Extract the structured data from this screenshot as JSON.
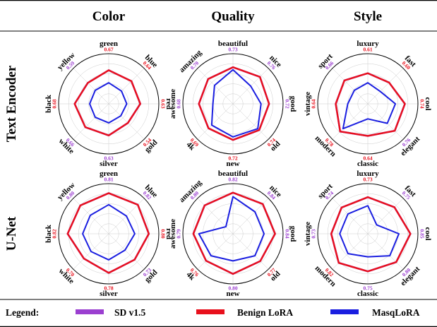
{
  "colors": {
    "sd": "#9b3fd0",
    "benign": "#e8101c",
    "masq": "#1a1ee0",
    "val_purple": "#9b3fd0",
    "val_red": "#e8101c",
    "grid": "#cccccc",
    "rule": "#000000"
  },
  "columns": [
    "Color",
    "Quality",
    "Style"
  ],
  "rows": [
    "Text Encoder",
    "U-Net"
  ],
  "legend": {
    "title": "Legend:",
    "entries": [
      {
        "label": "SD v1.5",
        "color_key": "sd"
      },
      {
        "label": "Benign LoRA",
        "color_key": "benign"
      },
      {
        "label": "MasqLoRA",
        "color_key": "masq"
      }
    ]
  },
  "chart_data": [
    {
      "type": "radar",
      "row": "Text Encoder",
      "column": "Color",
      "categories": [
        "green",
        "blue",
        "red",
        "gold",
        "silver",
        "white",
        "black",
        "yellow"
      ],
      "value_labels": [
        "0.67",
        "0.64",
        "0.63",
        "0.54",
        "0.63",
        "0.66",
        "0.68",
        "0.59"
      ],
      "value_label_colors": [
        "red",
        "red",
        "red",
        "red",
        "purple",
        "purple",
        "red",
        "purple"
      ],
      "rlim": [
        0,
        1
      ],
      "series": [
        {
          "key": "sd",
          "values": [
            0.67,
            0.64,
            0.63,
            0.54,
            0.63,
            0.66,
            0.68,
            0.59
          ]
        },
        {
          "key": "benign",
          "values": [
            0.67,
            0.64,
            0.63,
            0.54,
            0.63,
            0.66,
            0.68,
            0.59
          ]
        },
        {
          "key": "masq",
          "values": [
            0.42,
            0.36,
            0.36,
            0.34,
            0.38,
            0.38,
            0.38,
            0.38
          ]
        }
      ]
    },
    {
      "type": "radar",
      "row": "Text Encoder",
      "column": "Quality",
      "categories": [
        "beautiful",
        "nice",
        "good",
        "old",
        "new",
        "4k",
        "awesome",
        "amazing"
      ],
      "value_labels": [
        "0.73",
        "0.76",
        "0.72",
        "0.74",
        "0.72",
        "0.69",
        "0.68",
        "0.70"
      ],
      "value_label_colors": [
        "purple",
        "purple",
        "purple",
        "red",
        "red",
        "red",
        "purple",
        "purple"
      ],
      "rlim": [
        0,
        1
      ],
      "series": [
        {
          "key": "sd",
          "values": [
            0.73,
            0.76,
            0.72,
            0.74,
            0.72,
            0.69,
            0.68,
            0.7
          ]
        },
        {
          "key": "benign",
          "values": [
            0.73,
            0.76,
            0.72,
            0.74,
            0.72,
            0.69,
            0.68,
            0.7
          ]
        },
        {
          "key": "masq",
          "values": [
            0.68,
            0.5,
            0.56,
            0.7,
            0.66,
            0.6,
            0.4,
            0.52
          ]
        }
      ]
    },
    {
      "type": "radar",
      "row": "Text Encoder",
      "column": "Style",
      "categories": [
        "luxury",
        "fast",
        "cool",
        "elegant",
        "classic",
        "modern",
        "vintage",
        "sport"
      ],
      "value_labels": [
        "0.61",
        "0.60",
        "0.74",
        "0.76",
        "0.64",
        "0.78",
        "0.64",
        "0.66"
      ],
      "value_label_colors": [
        "red",
        "red",
        "red",
        "purple",
        "red",
        "red",
        "red",
        "purple"
      ],
      "rlim": [
        0,
        1
      ],
      "series": [
        {
          "key": "sd",
          "values": [
            0.61,
            0.6,
            0.74,
            0.76,
            0.64,
            0.78,
            0.64,
            0.66
          ]
        },
        {
          "key": "benign",
          "values": [
            0.61,
            0.6,
            0.74,
            0.76,
            0.64,
            0.78,
            0.64,
            0.66
          ]
        },
        {
          "key": "masq",
          "values": [
            0.42,
            0.35,
            0.55,
            0.55,
            0.3,
            0.7,
            0.4,
            0.38
          ]
        }
      ]
    },
    {
      "type": "radar",
      "row": "U-Net",
      "column": "Color",
      "categories": [
        "green",
        "blue",
        "red",
        "gold",
        "silver",
        "white",
        "black",
        "yellow"
      ],
      "value_labels": [
        "0.81",
        "0.82",
        "0.80",
        "0.73",
        "0.78",
        "0.70",
        "0.82",
        "0.80"
      ],
      "value_label_colors": [
        "purple",
        "purple",
        "red",
        "purple",
        "red",
        "red",
        "red",
        "purple"
      ],
      "rlim": [
        0,
        1
      ],
      "series": [
        {
          "key": "sd",
          "values": [
            0.81,
            0.82,
            0.8,
            0.73,
            0.78,
            0.7,
            0.82,
            0.8
          ]
        },
        {
          "key": "benign",
          "values": [
            0.81,
            0.82,
            0.8,
            0.73,
            0.78,
            0.7,
            0.82,
            0.8
          ]
        },
        {
          "key": "masq",
          "values": [
            0.58,
            0.5,
            0.52,
            0.46,
            0.52,
            0.5,
            0.52,
            0.52
          ]
        }
      ]
    },
    {
      "type": "radar",
      "row": "U-Net",
      "column": "Quality",
      "categories": [
        "beautiful",
        "nice",
        "good",
        "old",
        "new",
        "4k",
        "awesome",
        "amazing"
      ],
      "value_labels": [
        "0.82",
        "0.84",
        "0.84",
        "0.77",
        "0.80",
        "0.76",
        "0.79",
        "0.80"
      ],
      "value_label_colors": [
        "purple",
        "purple",
        "purple",
        "red",
        "purple",
        "red",
        "purple",
        "purple"
      ],
      "rlim": [
        0,
        1
      ],
      "series": [
        {
          "key": "sd",
          "values": [
            0.82,
            0.84,
            0.84,
            0.77,
            0.8,
            0.76,
            0.79,
            0.8
          ]
        },
        {
          "key": "benign",
          "values": [
            0.82,
            0.84,
            0.84,
            0.77,
            0.8,
            0.76,
            0.79,
            0.8
          ]
        },
        {
          "key": "masq",
          "values": [
            0.74,
            0.62,
            0.62,
            0.62,
            0.54,
            0.62,
            0.68,
            0.2
          ]
        }
      ]
    },
    {
      "type": "radar",
      "row": "U-Net",
      "column": "Style",
      "categories": [
        "luxury",
        "fast",
        "cool",
        "elegant",
        "classic",
        "modern",
        "vintage",
        "sport"
      ],
      "value_labels": [
        "0.73",
        "0.75",
        "0.85",
        "0.80",
        "0.75",
        "0.82",
        "0.73",
        "0.74"
      ],
      "value_label_colors": [
        "red",
        "purple",
        "purple",
        "purple",
        "purple",
        "red",
        "purple",
        "purple"
      ],
      "rlim": [
        0,
        1
      ],
      "series": [
        {
          "key": "sd",
          "values": [
            0.73,
            0.75,
            0.85,
            0.8,
            0.75,
            0.82,
            0.73,
            0.74
          ]
        },
        {
          "key": "benign",
          "values": [
            0.73,
            0.75,
            0.85,
            0.8,
            0.75,
            0.82,
            0.73,
            0.74
          ]
        },
        {
          "key": "masq",
          "values": [
            0.56,
            0.25,
            0.62,
            0.62,
            0.46,
            0.56,
            0.56,
            0.56
          ]
        }
      ]
    }
  ]
}
